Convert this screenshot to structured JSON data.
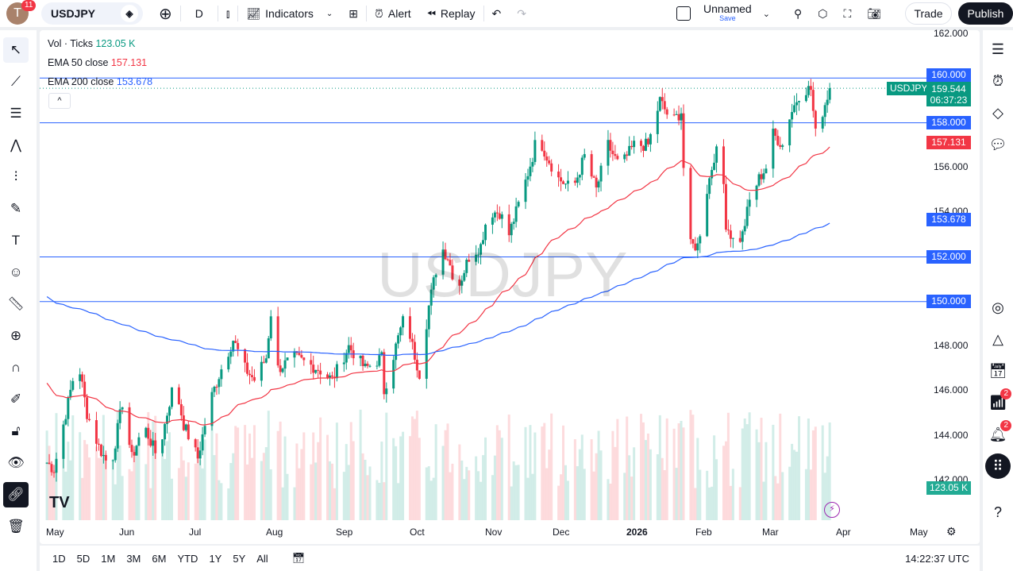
{
  "header": {
    "avatar_letter": "T",
    "notifications": "11",
    "symbol": "USDJPY",
    "interval": "D",
    "indicators": "Indicators",
    "alert": "Alert",
    "replay": "Replay",
    "layout_name": "Unnamed",
    "layout_save": "Save",
    "trade": "Trade",
    "publish": "Publish"
  },
  "legend": {
    "vol_label": "Vol · Ticks",
    "vol_value": "123.05 K",
    "ema50_label": "EMA 50 close",
    "ema50_value": "157.131",
    "ema200_label": "EMA 200 close",
    "ema200_value": "153.678"
  },
  "watermark": "USDJPY",
  "price_axis": {
    "ticks": [
      "162.000",
      "156.000",
      "154.000",
      "148.000",
      "146.000",
      "144.000",
      "142.000"
    ],
    "labels": {
      "line160": "160.000",
      "symbol": "USDJPY",
      "last": "159.544",
      "countdown": "06:37:23",
      "line158": "158.000",
      "ema50": "157.131",
      "ema200": "153.678",
      "line152": "152.000",
      "line150": "150.000",
      "volume": "123.05 K"
    }
  },
  "time_axis": {
    "ticks": [
      "May",
      "Jun",
      "Jul",
      "Aug",
      "Sep",
      "Oct",
      "Nov",
      "Dec",
      "2026",
      "Feb",
      "Mar",
      "Apr",
      "May"
    ]
  },
  "bottom_bar": {
    "ranges": [
      "1D",
      "5D",
      "1M",
      "3M",
      "6M",
      "YTD",
      "1Y",
      "5Y",
      "All"
    ],
    "clock": "14:22:37 UTC"
  },
  "right_sidebar": {
    "badges": [
      "2",
      "2"
    ]
  },
  "colors": {
    "up": "#089981",
    "down": "#f23645",
    "ema50": "#f23645",
    "ema200": "#2962ff",
    "hline": "#2962ff",
    "accent": "#2962ff"
  },
  "chart_data": {
    "type": "candlestick",
    "symbol": "USDJPY",
    "interval": "D",
    "ylim": [
      141,
      162.5
    ],
    "horizontal_lines": [
      160,
      158,
      152,
      150
    ],
    "last_price": 159.544,
    "ema50_last": 157.131,
    "ema200_last": 153.678,
    "approx_closes": [
      [
        "2025-04-26",
        143
      ],
      [
        "2025-05-01",
        142.5
      ],
      [
        "2025-05-11",
        147.5
      ],
      [
        "2025-05-15",
        145
      ],
      [
        "2025-05-20",
        143.5
      ],
      [
        "2025-05-25",
        142.5
      ],
      [
        "2025-05-30",
        145.5
      ],
      [
        "2025-06-03",
        143
      ],
      [
        "2025-06-08",
        144.5
      ],
      [
        "2025-06-14",
        143
      ],
      [
        "2025-06-21",
        146.5
      ],
      [
        "2025-06-25",
        144.5
      ],
      [
        "2025-07-01",
        143
      ],
      [
        "2025-07-06",
        145.5
      ],
      [
        "2025-07-11",
        147
      ],
      [
        "2025-07-16",
        148.3
      ],
      [
        "2025-07-21",
        147
      ],
      [
        "2025-07-25",
        146.5
      ],
      [
        "2025-07-30",
        147.5
      ],
      [
        "2025-08-02",
        150.5
      ],
      [
        "2025-08-04",
        147
      ],
      [
        "2025-08-11",
        147.5
      ],
      [
        "2025-08-21",
        147
      ],
      [
        "2025-08-27",
        146.5
      ],
      [
        "2025-09-03",
        148
      ],
      [
        "2025-09-10",
        147
      ],
      [
        "2025-09-17",
        147.5
      ],
      [
        "2025-09-18",
        146
      ],
      [
        "2025-09-23",
        148
      ],
      [
        "2025-09-27",
        149.5
      ],
      [
        "2025-09-30",
        148
      ],
      [
        "2025-10-03",
        146.8
      ],
      [
        "2025-10-07",
        149.8
      ],
      [
        "2025-10-12",
        152.5
      ],
      [
        "2025-10-15",
        152
      ],
      [
        "2025-10-19",
        150.5
      ],
      [
        "2025-10-24",
        152
      ],
      [
        "2025-10-29",
        152.5
      ],
      [
        "2025-11-01",
        154
      ],
      [
        "2025-11-06",
        154
      ],
      [
        "2025-11-10",
        153
      ],
      [
        "2025-11-13",
        154
      ],
      [
        "2025-11-16",
        155
      ],
      [
        "2025-11-20",
        156.5
      ],
      [
        "2025-11-22",
        157.5
      ],
      [
        "2025-11-26",
        156.5
      ],
      [
        "2025-12-01",
        155.5
      ],
      [
        "2025-12-07",
        155
      ],
      [
        "2025-12-12",
        156.5
      ],
      [
        "2025-12-17",
        155
      ],
      [
        "2025-12-22",
        157
      ],
      [
        "2025-12-27",
        156
      ],
      [
        "2026-01-02",
        157
      ],
      [
        "2026-01-08",
        157
      ],
      [
        "2026-01-13",
        159
      ],
      [
        "2026-01-18",
        158
      ],
      [
        "2026-01-22",
        158.5
      ],
      [
        "2026-01-23",
        156
      ],
      [
        "2026-01-26",
        152.5
      ],
      [
        "2026-01-29",
        152.5
      ],
      [
        "2026-02-02",
        155
      ],
      [
        "2026-02-05",
        156.5
      ],
      [
        "2026-02-08",
        157
      ],
      [
        "2026-02-10",
        153.5
      ],
      [
        "2026-02-14",
        152.5
      ],
      [
        "2026-02-17",
        153
      ],
      [
        "2026-02-20",
        154.5
      ],
      [
        "2026-02-24",
        155.5
      ],
      [
        "2026-02-27",
        156
      ],
      [
        "2026-03-02",
        157.5
      ],
      [
        "2026-03-06",
        157
      ],
      [
        "2026-03-09",
        158.3
      ],
      [
        "2026-03-14",
        159.5
      ],
      [
        "2026-03-18",
        159.5
      ],
      [
        "2026-03-20",
        157.5
      ],
      [
        "2026-03-23",
        158.5
      ],
      [
        "2026-03-26",
        159.544
      ]
    ]
  }
}
